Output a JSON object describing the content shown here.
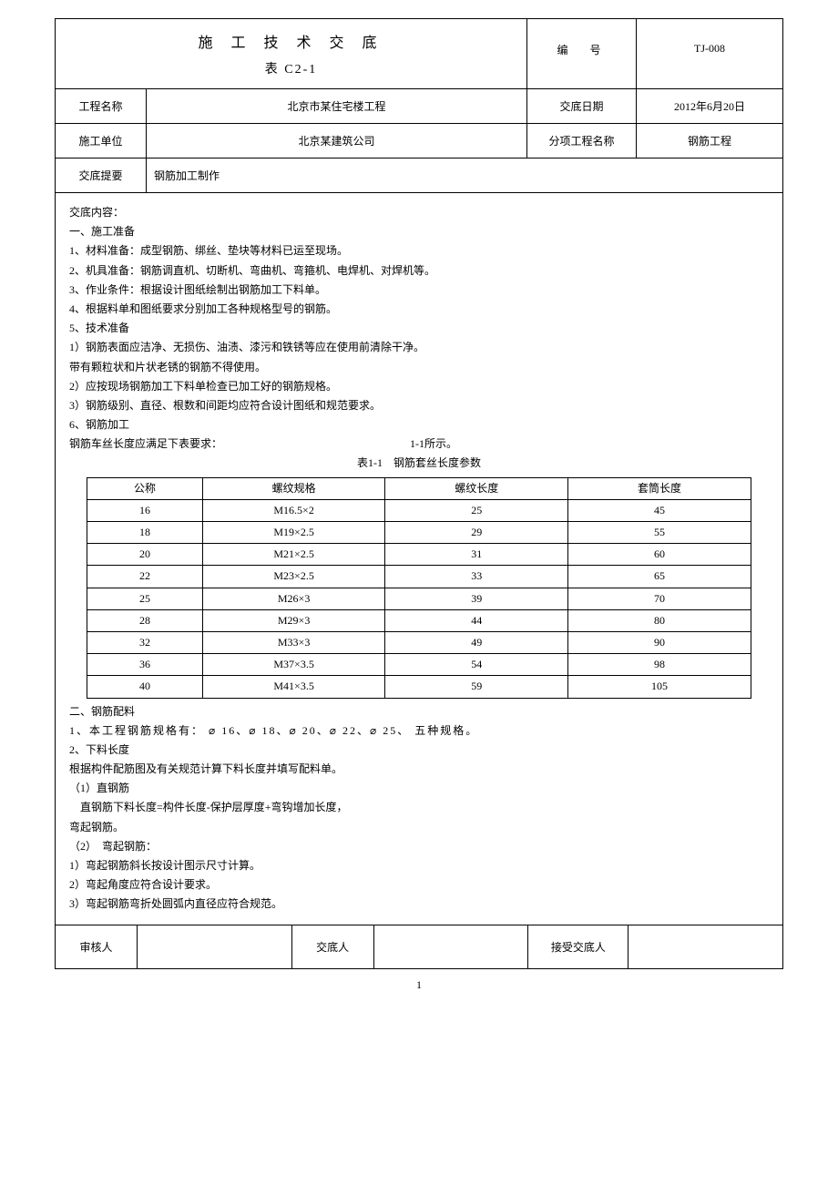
{
  "header": {
    "title_chars": "施 工 技 术 交 底",
    "subtitle": "表 C2-1",
    "number_label": "编　号",
    "number_value": "TJ-008"
  },
  "info_rows": [
    {
      "label": "工程名称",
      "value": "北京市某住宅楼工程",
      "label2": "交底日期",
      "value2": "2012年6月20日"
    },
    {
      "label": "施工单位",
      "value": "北京某建筑公司",
      "label2": "分项工程名称",
      "value2": "钢筋工程"
    }
  ],
  "single_row": {
    "label": "交底提要",
    "value": "钢筋加工制作"
  },
  "content": {
    "heading": "交底内容：",
    "section1_title": "一、施工准备",
    "items1": [
      "1、材料准备：成型钢筋、绑丝、垫块等材料已运至现场。",
      "2、机具准备：钢筋调直机、切断机、弯曲机、弯箍机、电焊机、对焊机等。",
      "3、作业条件：根据设计图纸绘制出钢筋加工下料单。",
      "4、根据料单和图纸要求分别加工各种规格型号的钢筋。",
      "5、技术准备"
    ],
    "items1b": [
      "1）钢筋表面应洁净、无损伤、油渍、漆污和铁锈等应在使用前清除干净。",
      "带有颗粒状和片状老锈的钢筋不得使用。",
      "2）应按现场钢筋加工下料单检查已加工好的钢筋规格。",
      "3）钢筋级别、直径、根数和间距均应符合设计图纸和规范要求。"
    ],
    "section6": "6、钢筋加工",
    "line6": "钢筋车丝长度应满足下表要求：",
    "table_ref": "1-1所示。",
    "table_caption": "表1-1　钢筋套丝长度参数",
    "table": {
      "headers": [
        "公称",
        "螺纹规格",
        "螺纹长度",
        "套筒长度"
      ],
      "rows": [
        [
          "16",
          "M16.5×2",
          "25",
          "45"
        ],
        [
          "18",
          "M19×2.5",
          "29",
          "55"
        ],
        [
          "20",
          "M21×2.5",
          "31",
          "60"
        ],
        [
          "22",
          "M23×2.5",
          "33",
          "65"
        ],
        [
          "25",
          "M26×3",
          "39",
          "70"
        ],
        [
          "28",
          "M29×3",
          "44",
          "80"
        ],
        [
          "32",
          "M33×3",
          "49",
          "90"
        ],
        [
          "36",
          "M37×3.5",
          "54",
          "98"
        ],
        [
          "40",
          "M41×3.5",
          "59",
          "105"
        ]
      ]
    },
    "section2_title": "二、钢筋配料",
    "diameter_line_prefix": "1、本工程钢筋规格有：",
    "diameters": [
      "16",
      "18",
      "20",
      "22",
      "25"
    ],
    "diameter_suffix": "五种规格。",
    "item2_2": "2、下料长度",
    "item2_2_line": "根据构件配筋图及有关规范计算下料长度并填写配料单。",
    "sub1_title": "（1）直钢筋",
    "sub1_line": "直钢筋下料长度=构件长度-保护层厚度+弯钩增加长度，",
    "sub1_line2": "弯起钢筋。",
    "sub2_title": "（2）　弯起钢筋：",
    "sub2_items": [
      "1）弯起钢筋斜长按设计图示尺寸计算。",
      "2）弯起角度应符合设计要求。",
      "3）弯起钢筋弯折处圆弧内直径应符合规范。"
    ]
  },
  "signatures": {
    "label1": "审核人",
    "label2": "交底人",
    "label3": "接受交底人"
  },
  "page_number": "1"
}
